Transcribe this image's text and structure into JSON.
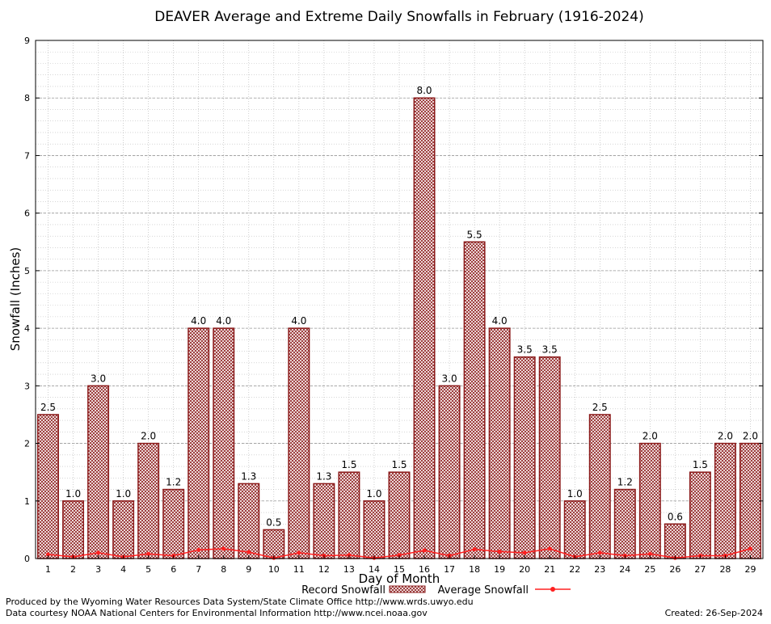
{
  "chart_data": {
    "type": "bar",
    "title": "DEAVER Average and Extreme Daily Snowfalls in February (1916-2024)",
    "xlabel": "Day of Month",
    "ylabel": "Snowfall (Inches)",
    "ylim": [
      0,
      9
    ],
    "yticks": [
      0,
      1,
      2,
      3,
      4,
      5,
      6,
      7,
      8,
      9
    ],
    "grid": true,
    "legend_position": "bottom",
    "categories": [
      "1",
      "2",
      "3",
      "4",
      "5",
      "6",
      "7",
      "8",
      "9",
      "10",
      "11",
      "12",
      "13",
      "14",
      "15",
      "16",
      "17",
      "18",
      "19",
      "20",
      "21",
      "22",
      "23",
      "24",
      "25",
      "26",
      "27",
      "28",
      "29"
    ],
    "series": [
      {
        "name": "Record Snowfall",
        "kind": "bar",
        "color": "#8b1a1a",
        "values": [
          2.5,
          1.0,
          3.0,
          1.0,
          2.0,
          1.2,
          4.0,
          4.0,
          1.3,
          0.5,
          4.0,
          1.3,
          1.5,
          1.0,
          1.5,
          8.0,
          3.0,
          5.5,
          4.0,
          3.5,
          3.5,
          1.0,
          2.5,
          1.2,
          2.0,
          0.6,
          1.5,
          2.0,
          2.0
        ],
        "labels": [
          "2.5",
          "1.0",
          "3.0",
          "1.0",
          "2.0",
          "1.2",
          "4.0",
          "4.0",
          "1.3",
          "0.5",
          "4.0",
          "1.3",
          "1.5",
          "1.0",
          "1.5",
          "8.0",
          "3.0",
          "5.5",
          "4.0",
          "3.5",
          "3.5",
          "1.0",
          "2.5",
          "1.2",
          "2.0",
          "0.6",
          "1.5",
          "2.0",
          "2.0"
        ]
      },
      {
        "name": "Average Snowfall",
        "kind": "line",
        "color": "#ff2020",
        "values": [
          0.07,
          0.03,
          0.1,
          0.03,
          0.08,
          0.05,
          0.15,
          0.17,
          0.11,
          0.01,
          0.1,
          0.05,
          0.06,
          0.01,
          0.06,
          0.14,
          0.05,
          0.16,
          0.12,
          0.1,
          0.17,
          0.03,
          0.1,
          0.05,
          0.08,
          0.01,
          0.05,
          0.05,
          0.17
        ]
      }
    ]
  },
  "footer": {
    "produced_by": "Produced by the Wyoming Water Resources Data System/State Climate Office http://www.wrds.uwyo.edu",
    "data_courtesy": "Data courtesy NOAA National Centers for Environmental Information http://www.ncei.noaa.gov",
    "created": "Created:  26-Sep-2024"
  }
}
